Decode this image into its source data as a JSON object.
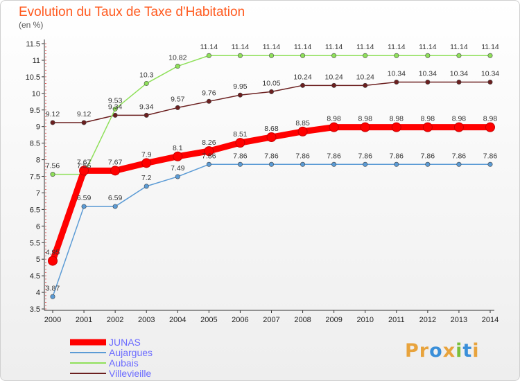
{
  "header": {
    "title": "Evolution du Taux de Taxe d'Habitation",
    "subtitle": "(en %)"
  },
  "logo": {
    "text": "Proxiti",
    "letters": [
      "P",
      "r",
      "o",
      "x",
      "i",
      "t",
      "i"
    ],
    "colors": [
      "#e8a33c",
      "#e8a33c",
      "#3a8fd9",
      "#e8a33c",
      "#7bbf3a",
      "#3a8fd9",
      "#e8a33c"
    ]
  },
  "chart_data": {
    "type": "line",
    "x": [
      2000,
      2001,
      2002,
      2003,
      2004,
      2005,
      2006,
      2007,
      2008,
      2009,
      2010,
      2011,
      2012,
      2013,
      2014
    ],
    "ylim": [
      3.5,
      11.5
    ],
    "yticks": [
      3.5,
      4,
      4.5,
      5,
      5.5,
      6,
      6.5,
      7,
      7.5,
      8,
      8.5,
      9,
      9.5,
      10,
      10.5,
      11,
      11.5
    ],
    "grid": false,
    "legend_position": "bottom-left",
    "series": [
      {
        "name": "Villevieille",
        "color": "#6b1f1f",
        "values": [
          9.12,
          9.12,
          9.34,
          9.34,
          9.57,
          9.76,
          9.95,
          10.05,
          10.24,
          10.24,
          10.24,
          10.34,
          10.34,
          10.34,
          10.34
        ]
      },
      {
        "name": "Aubais",
        "color": "#8fe05a",
        "values": [
          7.56,
          7.56,
          9.53,
          10.3,
          10.82,
          11.14,
          11.14,
          11.14,
          11.14,
          11.14,
          11.14,
          11.14,
          11.14,
          11.14,
          11.14
        ]
      },
      {
        "name": "Aujargues",
        "color": "#5b9bd5",
        "values": [
          3.87,
          6.59,
          6.59,
          7.2,
          7.49,
          7.86,
          7.86,
          7.86,
          7.86,
          7.86,
          7.86,
          7.86,
          7.86,
          7.86,
          7.86
        ]
      },
      {
        "name": "JUNAS",
        "color": "#ff0000",
        "values": [
          4.95,
          7.67,
          7.67,
          7.9,
          8.1,
          8.26,
          8.51,
          8.68,
          8.85,
          8.98,
          8.98,
          8.98,
          8.98,
          8.98,
          8.98
        ]
      }
    ],
    "legend_order": [
      "JUNAS",
      "Aujargues",
      "Aubais",
      "Villevieille"
    ]
  }
}
